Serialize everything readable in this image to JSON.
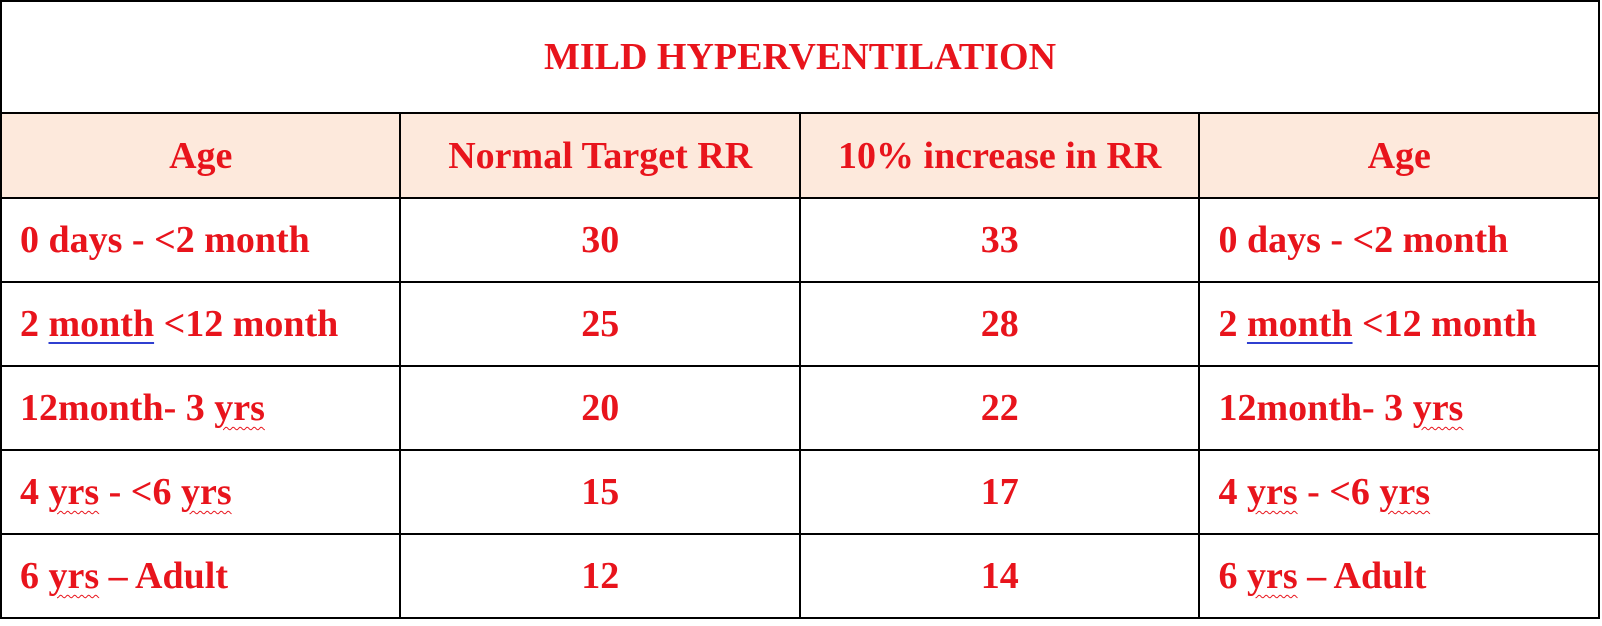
{
  "table": {
    "title": "MILD HYPERVENTILATION",
    "headers": [
      "Age",
      "Normal Target RR",
      "10% increase in RR",
      "Age"
    ],
    "rows": [
      {
        "age": [
          "0 days - <2 month"
        ],
        "normal_rr": "30",
        "increase_rr": "33",
        "age_repeat": [
          "0 days - <2 month"
        ]
      },
      {
        "age": [
          "2 ",
          "month",
          " <12 month"
        ],
        "normal_rr": "25",
        "increase_rr": "28",
        "age_repeat": [
          "2 ",
          "month",
          " <12 month"
        ]
      },
      {
        "age": [
          "12month- 3 ",
          "yrs"
        ],
        "normal_rr": "20",
        "increase_rr": "22",
        "age_repeat": [
          "12month- 3 ",
          "yrs"
        ]
      },
      {
        "age": [
          "4 ",
          "yrs",
          " - <6 ",
          "yrs"
        ],
        "normal_rr": "15",
        "increase_rr": "17",
        "age_repeat": [
          "4 ",
          "yrs",
          " - <6 ",
          "yrs"
        ]
      },
      {
        "age": [
          "6 ",
          "yrs",
          " – Adult"
        ],
        "normal_rr": "12",
        "increase_rr": "14",
        "age_repeat": [
          "6 ",
          "yrs",
          " – Adult"
        ]
      }
    ]
  },
  "colors": {
    "text": "#e8141c",
    "header_fill": "#fde9dc",
    "border": "#000000",
    "spellcheck_underline": "#e8141c",
    "grammar_underline": "#2f3fd0"
  }
}
